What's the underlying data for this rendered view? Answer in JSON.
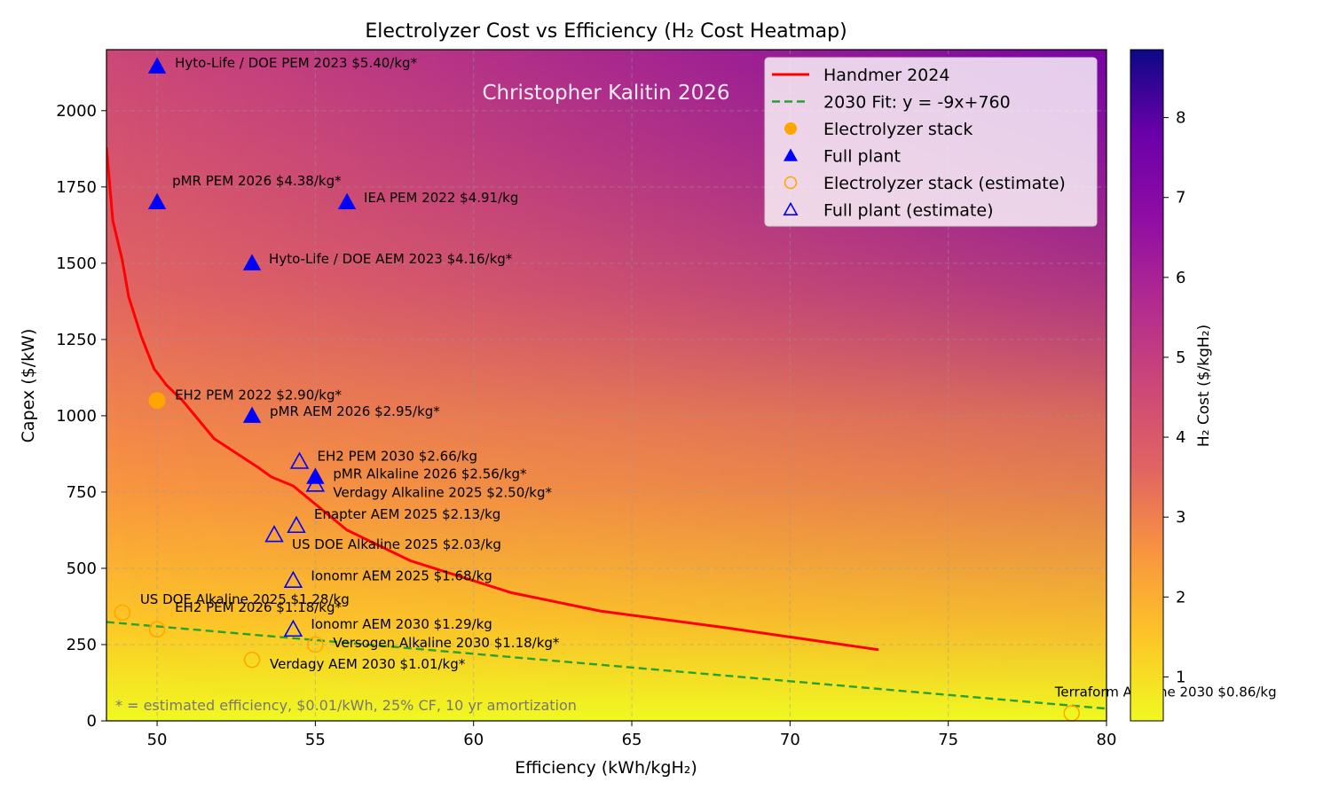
{
  "chart_data": {
    "type": "scatter",
    "title": "Electrolyzer Cost vs Efficiency (H₂ Cost Heatmap)",
    "watermark": "Christopher Kalitin 2026",
    "xlabel": "Efficiency (kWh/kgH₂)",
    "ylabel": "Capex ($/kW)",
    "xlim": [
      48.4,
      80
    ],
    "ylim": [
      0,
      2200
    ],
    "xticks": [
      50,
      55,
      60,
      65,
      70,
      75,
      80
    ],
    "yticks": [
      0,
      250,
      500,
      750,
      1000,
      1250,
      1500,
      1750,
      2000
    ],
    "grid": true,
    "legend_position": "top-right",
    "footnote": "* = estimated efficiency, $0.01/kWh, 25% CF, 10 yr amortization",
    "colorbar": {
      "label": "H₂ Cost ($/kgH₂)",
      "range": [
        0.45,
        8.85
      ],
      "ticks": [
        1,
        2,
        3,
        4,
        5,
        6,
        7,
        8
      ],
      "colormap": [
        "#f0f921",
        "#fdc527",
        "#f89540",
        "#e16462",
        "#cc4778",
        "#b12a90",
        "#8f0da4",
        "#6a00a8",
        "#0d0887"
      ]
    },
    "legend": [
      {
        "label": "Handmer 2024",
        "kind": "line",
        "color": "#ff0000"
      },
      {
        "label": "2030 Fit: y = -9x+760",
        "kind": "dashed",
        "color": "#2ca02c"
      },
      {
        "label": "Electrolyzer stack",
        "kind": "circle-filled",
        "color": "#ffa500"
      },
      {
        "label": "Full plant",
        "kind": "triangle-filled",
        "color": "#0000ff"
      },
      {
        "label": "Electrolyzer stack (estimate)",
        "kind": "circle-open",
        "color": "#ffa500"
      },
      {
        "label": "Full plant (estimate)",
        "kind": "triangle-open",
        "color": "#0000ff"
      }
    ],
    "series": [
      {
        "name": "Handmer 2024",
        "kind": "line",
        "color": "#ff0000",
        "x": [
          48.4,
          48.6,
          48.9,
          49.1,
          49.5,
          49.9,
          50.3,
          50.8,
          51.8,
          53.2,
          53.6,
          54.3,
          56.0,
          58.0,
          61.2,
          64.0,
          68.0,
          72.8
        ],
        "y": [
          1880,
          1640,
          1510,
          1390,
          1260,
          1155,
          1100,
          1050,
          925,
          830,
          800,
          770,
          625,
          525,
          420,
          360,
          305,
          233
        ]
      },
      {
        "name": "2030 Fit: y = -9x+760",
        "kind": "dashed",
        "color": "#2ca02c",
        "x": [
          48.4,
          80
        ],
        "y": [
          324,
          40
        ]
      }
    ],
    "points": [
      {
        "label": "Hyto-Life / DOE PEM 2023 $5.40/kg*",
        "x": 50.0,
        "y": 2145,
        "kind": "triangle-filled",
        "color": "#0000ff"
      },
      {
        "label": "pMR PEM 2026 $4.38/kg*",
        "x": 50.0,
        "y": 1700,
        "kind": "triangle-filled",
        "color": "#0000ff"
      },
      {
        "label": "IEA PEM 2022 $4.91/kg",
        "x": 56.0,
        "y": 1700,
        "kind": "triangle-filled",
        "color": "#0000ff"
      },
      {
        "label": "Hyto-Life / DOE AEM 2023 $4.16/kg*",
        "x": 53.0,
        "y": 1500,
        "kind": "triangle-filled",
        "color": "#0000ff"
      },
      {
        "label": "EH2 PEM 2022 $2.90/kg*",
        "x": 50.0,
        "y": 1050,
        "kind": "circle-filled",
        "color": "#ffa500"
      },
      {
        "label": "pMR AEM 2026 $2.95/kg*",
        "x": 53.0,
        "y": 1000,
        "kind": "triangle-filled",
        "color": "#0000ff"
      },
      {
        "label": "EH2 PEM 2030 $2.66/kg",
        "x": 54.5,
        "y": 850,
        "kind": "triangle-open",
        "color": "#0000ff"
      },
      {
        "label": "pMR Alkaline 2026 $2.56/kg*",
        "x": 55.0,
        "y": 800,
        "kind": "triangle-filled",
        "color": "#0000ff"
      },
      {
        "label": "Verdagy Alkaline 2025 $2.50/kg*",
        "x": 55.0,
        "y": 775,
        "kind": "triangle-open",
        "color": "#0000ff"
      },
      {
        "label": "Enapter AEM 2025 $2.13/kg",
        "x": 54.4,
        "y": 640,
        "kind": "triangle-open",
        "color": "#0000ff"
      },
      {
        "label": "US DOE Alkaline 2025 $2.03/kg",
        "x": 53.7,
        "y": 610,
        "kind": "triangle-open",
        "color": "#0000ff"
      },
      {
        "label": "Ionomr AEM 2025 $1.68/kg",
        "x": 54.3,
        "y": 460,
        "kind": "triangle-open",
        "color": "#0000ff"
      },
      {
        "label": "US DOE Alkaline 2025 $1.28/kg",
        "x": 48.9,
        "y": 355,
        "kind": "circle-open",
        "color": "#ffa500"
      },
      {
        "label": "EH2 PEM 2026 $1.18/kg*",
        "x": 50.0,
        "y": 300,
        "kind": "circle-open",
        "color": "#ffa500"
      },
      {
        "label": "Ionomr AEM 2030 $1.29/kg",
        "x": 54.3,
        "y": 300,
        "kind": "triangle-open",
        "color": "#0000ff"
      },
      {
        "label": "Versogen Alkaline 2030 $1.18/kg*",
        "x": 55.0,
        "y": 250,
        "kind": "circle-open",
        "color": "#ffa500"
      },
      {
        "label": "Verdagy AEM 2030 $1.01/kg*",
        "x": 53.0,
        "y": 200,
        "kind": "circle-open",
        "color": "#ffa500"
      },
      {
        "label": "Terraform Alkaline 2030 $0.86/kg",
        "x": 78.9,
        "y": 25,
        "kind": "circle-open",
        "color": "#ffa500"
      }
    ]
  }
}
